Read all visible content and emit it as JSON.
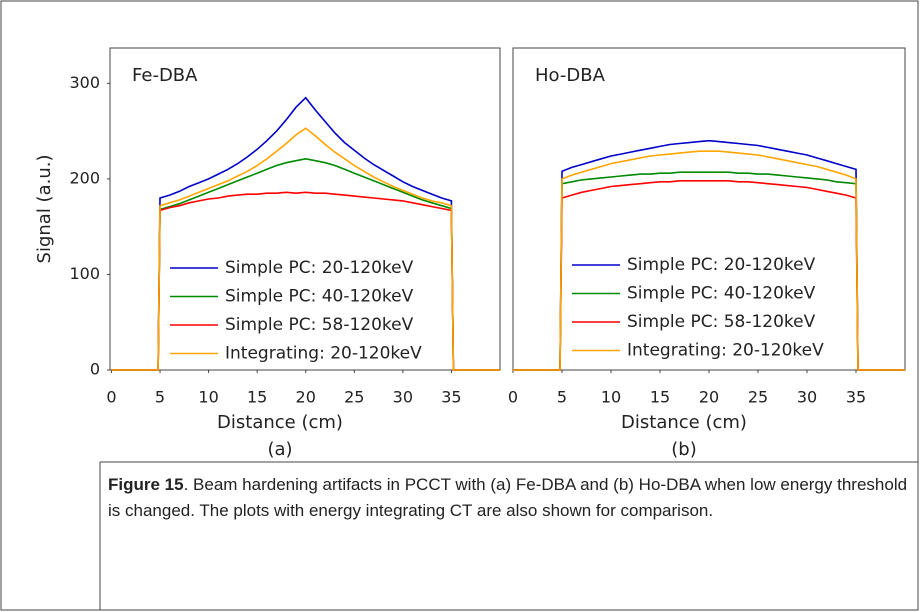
{
  "chart_data": [
    {
      "type": "line",
      "title": "Fe-DBA",
      "x_label": "Distance (cm)",
      "y_label": "Signal (a.u.)",
      "panel_label": "(a)",
      "x": [
        0,
        4.8,
        5,
        6,
        7,
        8,
        9,
        10,
        11,
        12,
        13,
        14,
        15,
        16,
        17,
        18,
        19,
        20,
        21,
        22,
        23,
        24,
        25,
        26,
        27,
        28,
        29,
        30,
        31,
        32,
        33,
        34,
        35,
        35.2,
        40
      ],
      "xlim": [
        -0.15,
        40
      ],
      "xticks": [
        0,
        5,
        10,
        15,
        20,
        25,
        30,
        35
      ],
      "ylim": [
        0,
        337
      ],
      "yticks": [
        0,
        100,
        200,
        300
      ],
      "series": [
        {
          "name": "Simple PC: 20-120keV",
          "color": "#0000c8",
          "values": [
            0,
            0,
            180,
            183,
            187,
            192,
            196,
            200,
            205,
            210,
            216,
            223,
            231,
            240,
            250,
            262,
            275,
            285,
            272,
            260,
            248,
            238,
            230,
            222,
            215,
            209,
            203,
            197,
            192,
            188,
            184,
            180,
            177,
            0,
            0
          ]
        },
        {
          "name": "Simple PC: 40-120keV",
          "color": "#008a00",
          "values": [
            0,
            0,
            168,
            171,
            174,
            178,
            182,
            186,
            190,
            194,
            198,
            202,
            206,
            210,
            214,
            217,
            219,
            221,
            219,
            217,
            214,
            210,
            206,
            202,
            198,
            194,
            190,
            186,
            182,
            178,
            175,
            172,
            169,
            0,
            0
          ]
        },
        {
          "name": "Simple PC: 58-120keV",
          "color": "#ff0000",
          "values": [
            0,
            0,
            167,
            170,
            172,
            175,
            177,
            179,
            180,
            182,
            183,
            184,
            184,
            185,
            185,
            186,
            185,
            186,
            185,
            185,
            184,
            183,
            182,
            181,
            180,
            179,
            178,
            177,
            175,
            173,
            171,
            169,
            167,
            0,
            0
          ]
        },
        {
          "name": "Integrating: 20-120keV",
          "color": "#ffa500",
          "values": [
            0,
            0,
            172,
            175,
            178,
            182,
            186,
            190,
            194,
            198,
            203,
            208,
            214,
            221,
            229,
            237,
            246,
            253,
            245,
            236,
            228,
            221,
            214,
            208,
            202,
            197,
            192,
            188,
            184,
            180,
            177,
            175,
            172,
            0,
            0
          ]
        }
      ]
    },
    {
      "type": "line",
      "title": "Ho-DBA",
      "x_label": "Distance (cm)",
      "panel_label": "(b)",
      "x": [
        0,
        4.8,
        5,
        6,
        7,
        8,
        9,
        10,
        11,
        12,
        13,
        14,
        15,
        16,
        17,
        18,
        19,
        20,
        21,
        22,
        23,
        24,
        25,
        26,
        27,
        28,
        29,
        30,
        31,
        32,
        33,
        34,
        35,
        35.2,
        40
      ],
      "xlim": [
        0,
        40
      ],
      "xticks": [
        0,
        5,
        10,
        15,
        20,
        25,
        30,
        35
      ],
      "ylim": [
        0,
        337
      ],
      "series": [
        {
          "name": "Simple PC: 20-120keV",
          "color": "#0000c8",
          "values": [
            0,
            0,
            208,
            212,
            215,
            218,
            221,
            224,
            226,
            228,
            230,
            232,
            234,
            236,
            237,
            238,
            239,
            240,
            239,
            238,
            237,
            236,
            235,
            233,
            231,
            229,
            227,
            225,
            222,
            219,
            216,
            213,
            210,
            0,
            0
          ]
        },
        {
          "name": "Simple PC: 40-120keV",
          "color": "#008a00",
          "values": [
            0,
            0,
            195,
            197,
            199,
            200,
            201,
            202,
            203,
            204,
            205,
            205,
            206,
            206,
            207,
            207,
            207,
            207,
            207,
            207,
            206,
            206,
            205,
            205,
            204,
            203,
            202,
            201,
            200,
            199,
            197,
            196,
            195,
            0,
            0
          ]
        },
        {
          "name": "Simple PC: 58-120keV",
          "color": "#ff0000",
          "values": [
            0,
            0,
            180,
            183,
            186,
            188,
            190,
            192,
            193,
            194,
            195,
            196,
            197,
            197,
            198,
            198,
            198,
            198,
            198,
            198,
            197,
            197,
            196,
            195,
            194,
            193,
            192,
            191,
            189,
            187,
            185,
            183,
            180,
            0,
            0
          ]
        },
        {
          "name": "Integrating: 20-120keV",
          "color": "#ffa500",
          "values": [
            0,
            0,
            200,
            204,
            207,
            210,
            213,
            216,
            218,
            220,
            222,
            224,
            225,
            226,
            227,
            228,
            229,
            229,
            229,
            228,
            227,
            226,
            225,
            223,
            221,
            219,
            217,
            215,
            213,
            210,
            207,
            204,
            200,
            0,
            0
          ]
        }
      ]
    }
  ],
  "caption": {
    "label": "Figure 15",
    "text": ". Beam hardening artifacts in PCCT with (a) Fe-DBA and (b) Ho-DBA when low energy threshold is changed. The plots with energy integrating CT are also shown for comparison."
  }
}
